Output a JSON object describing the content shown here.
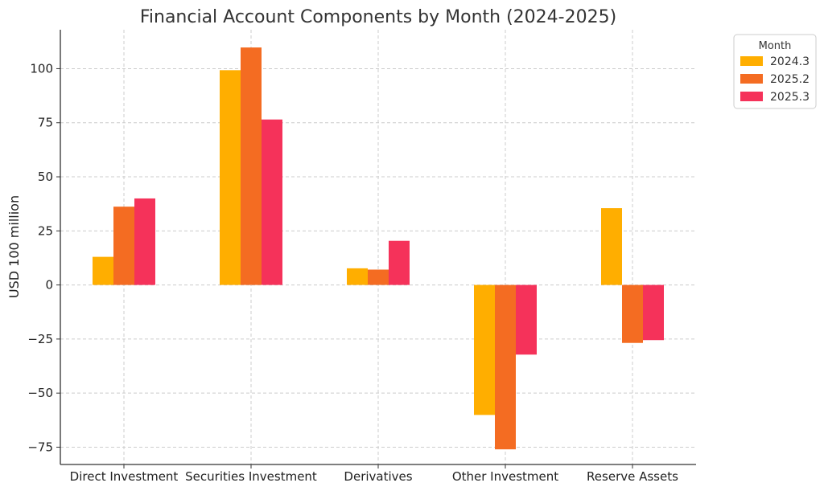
{
  "chart_data": {
    "type": "bar",
    "title": "Financial Account Components by Month (2024-2025)",
    "xlabel": "",
    "ylabel": "USD 100 million",
    "categories": [
      "Direct Investment",
      "Securities Investment",
      "Derivatives",
      "Other Investment",
      "Reserve Assets"
    ],
    "series": [
      {
        "name": "2024.3",
        "color": "#FFAE00",
        "values": [
          13,
          99.3,
          7.7,
          -60.1,
          35.5
        ]
      },
      {
        "name": "2025.2",
        "color": "#F46C22",
        "values": [
          36.2,
          109.8,
          7.1,
          -76,
          -26.8
        ]
      },
      {
        "name": "2025.3",
        "color": "#F5325A",
        "values": [
          40,
          76.5,
          20.4,
          -32.2,
          -25.5
        ]
      }
    ],
    "ylim": [
      -83,
      118
    ],
    "yticks": [
      -75,
      -50,
      -25,
      0,
      25,
      50,
      75,
      100
    ],
    "ytick_labels": [
      "−75",
      "−50",
      "−25",
      "0",
      "25",
      "50",
      "75",
      "100"
    ],
    "grid": true,
    "legend": {
      "title": "Month",
      "placement": "outside-top-right"
    }
  }
}
